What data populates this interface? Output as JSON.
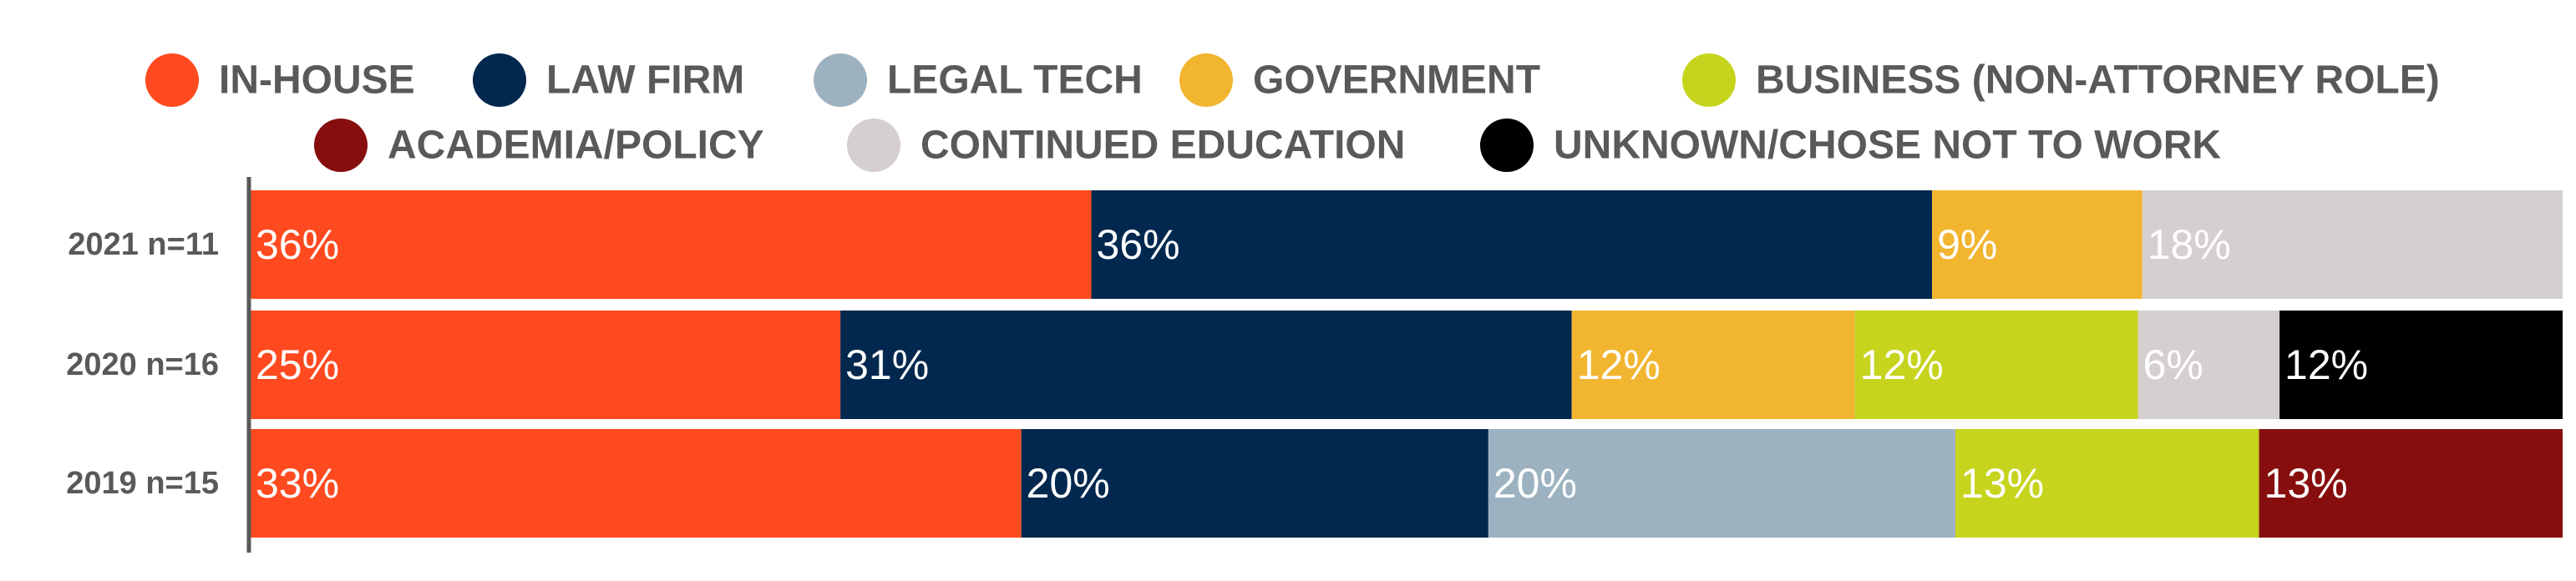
{
  "chart_data": {
    "type": "bar",
    "orientation": "horizontal",
    "stacked": "percent",
    "legend_position": "top",
    "grid": false,
    "categories": [
      "2021 n=11",
      "2020 n=16",
      "2019 n=15"
    ],
    "series": [
      {
        "name": "IN-HOUSE",
        "color": "#ff4a1f",
        "values": [
          36,
          25,
          33
        ],
        "labels": [
          "36%",
          "25%",
          "33%"
        ]
      },
      {
        "name": "LAW FIRM",
        "color": "#02284f",
        "values": [
          36,
          31,
          20
        ],
        "labels": [
          "36%",
          "31%",
          "20%"
        ]
      },
      {
        "name": "LEGAL TECH",
        "color": "#9db2c1",
        "values": [
          0,
          0,
          20
        ],
        "labels": [
          "",
          "",
          "20%"
        ]
      },
      {
        "name": "GOVERNMENT",
        "color": "#f2b530",
        "values": [
          9,
          12,
          0
        ],
        "labels": [
          "9%",
          "12%",
          ""
        ]
      },
      {
        "name": "BUSINESS (NON-ATTORNEY ROLE)",
        "color": "#c6d41e",
        "values": [
          0,
          12,
          13
        ],
        "labels": [
          "",
          "12%",
          "13%"
        ]
      },
      {
        "name": "ACADEMIA/POLICY",
        "color": "#870e0e",
        "values": [
          0,
          0,
          13
        ],
        "labels": [
          "",
          "",
          "13%"
        ]
      },
      {
        "name": "CONTINUED EDUCATION",
        "color": "#d6cfcf",
        "values": [
          18,
          6,
          0
        ],
        "labels": [
          "18%",
          "6%",
          ""
        ]
      },
      {
        "name": "UNKNOWN/CHOSE NOT TO WORK",
        "color": "#000000",
        "values": [
          0,
          12,
          0
        ],
        "labels": [
          "",
          "12%",
          ""
        ]
      }
    ]
  }
}
